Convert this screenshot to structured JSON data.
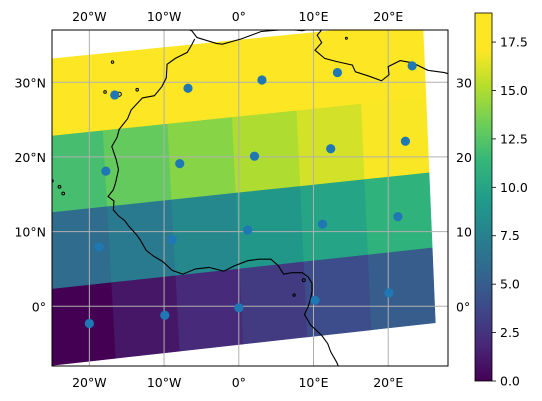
{
  "chart_data": {
    "type": "heatmap",
    "title": "",
    "xlabel": "",
    "ylabel": "",
    "projection": "rotated-latlon",
    "xlim": [
      -25,
      28
    ],
    "ylim": [
      -8,
      37
    ],
    "grid": true,
    "map_ticks": {
      "lon": [
        {
          "value": -20,
          "label": "20°W"
        },
        {
          "value": -10,
          "label": "10°W"
        },
        {
          "value": 0,
          "label": "0°"
        },
        {
          "value": 10,
          "label": "10°E"
        },
        {
          "value": 20,
          "label": "20°E"
        }
      ],
      "lat": [
        {
          "value": 0,
          "label": "0°"
        },
        {
          "value": 10,
          "label": "10°N"
        },
        {
          "value": 20,
          "label": "20°N"
        },
        {
          "value": 30,
          "label": "30°N"
        }
      ],
      "lat_right": [
        {
          "value": 0,
          "label": "0°"
        },
        {
          "value": 10,
          "label": "10"
        },
        {
          "value": 20,
          "label": "20"
        },
        {
          "value": 30,
          "label": "30"
        }
      ]
    },
    "grid_cells": {
      "columns": 6,
      "rows": 4,
      "values": [
        [
          0,
          1,
          2,
          3,
          4,
          5
        ],
        [
          6,
          7,
          8,
          9,
          10,
          11
        ],
        [
          12,
          13,
          14,
          15,
          16,
          17
        ],
        [
          18,
          19,
          20,
          21,
          22,
          23
        ]
      ],
      "note_rows": "row 0 = southernmost"
    },
    "points": [
      {
        "lon": -20.0,
        "lat": -2.3
      },
      {
        "lon": -9.9,
        "lat": -1.2
      },
      {
        "lon": 0.0,
        "lat": -0.2
      },
      {
        "lon": 10.2,
        "lat": 0.8
      },
      {
        "lon": 20.1,
        "lat": 1.8
      },
      {
        "lon": -18.7,
        "lat": 7.9
      },
      {
        "lon": -8.9,
        "lat": 8.9
      },
      {
        "lon": 1.2,
        "lat": 10.2
      },
      {
        "lon": 11.2,
        "lat": 11.0
      },
      {
        "lon": 21.3,
        "lat": 12.0
      },
      {
        "lon": -17.8,
        "lat": 18.1
      },
      {
        "lon": -7.9,
        "lat": 19.1
      },
      {
        "lon": 2.1,
        "lat": 20.1
      },
      {
        "lon": 12.3,
        "lat": 21.1
      },
      {
        "lon": 22.3,
        "lat": 22.1
      },
      {
        "lon": -16.6,
        "lat": 28.3
      },
      {
        "lon": -6.8,
        "lat": 29.2
      },
      {
        "lon": 3.1,
        "lat": 30.3
      },
      {
        "lon": 13.2,
        "lat": 31.3
      },
      {
        "lon": 23.2,
        "lat": 32.2
      }
    ],
    "colorbar": {
      "colormap": "viridis",
      "range": [
        0,
        19
      ],
      "ticks": [
        {
          "value": 0.0,
          "label": "0.0"
        },
        {
          "value": 2.5,
          "label": "2.5"
        },
        {
          "value": 5.0,
          "label": "5.0"
        },
        {
          "value": 7.5,
          "label": "7.5"
        },
        {
          "value": 10.0,
          "label": "10.0"
        },
        {
          "value": 12.5,
          "label": "12.5"
        },
        {
          "value": 15.0,
          "label": "15.0"
        },
        {
          "value": 17.5,
          "label": "17.5"
        }
      ]
    },
    "colors": {
      "point": "#1f77b4",
      "coastline": "#000000",
      "grid": "#b0b0b0"
    }
  }
}
